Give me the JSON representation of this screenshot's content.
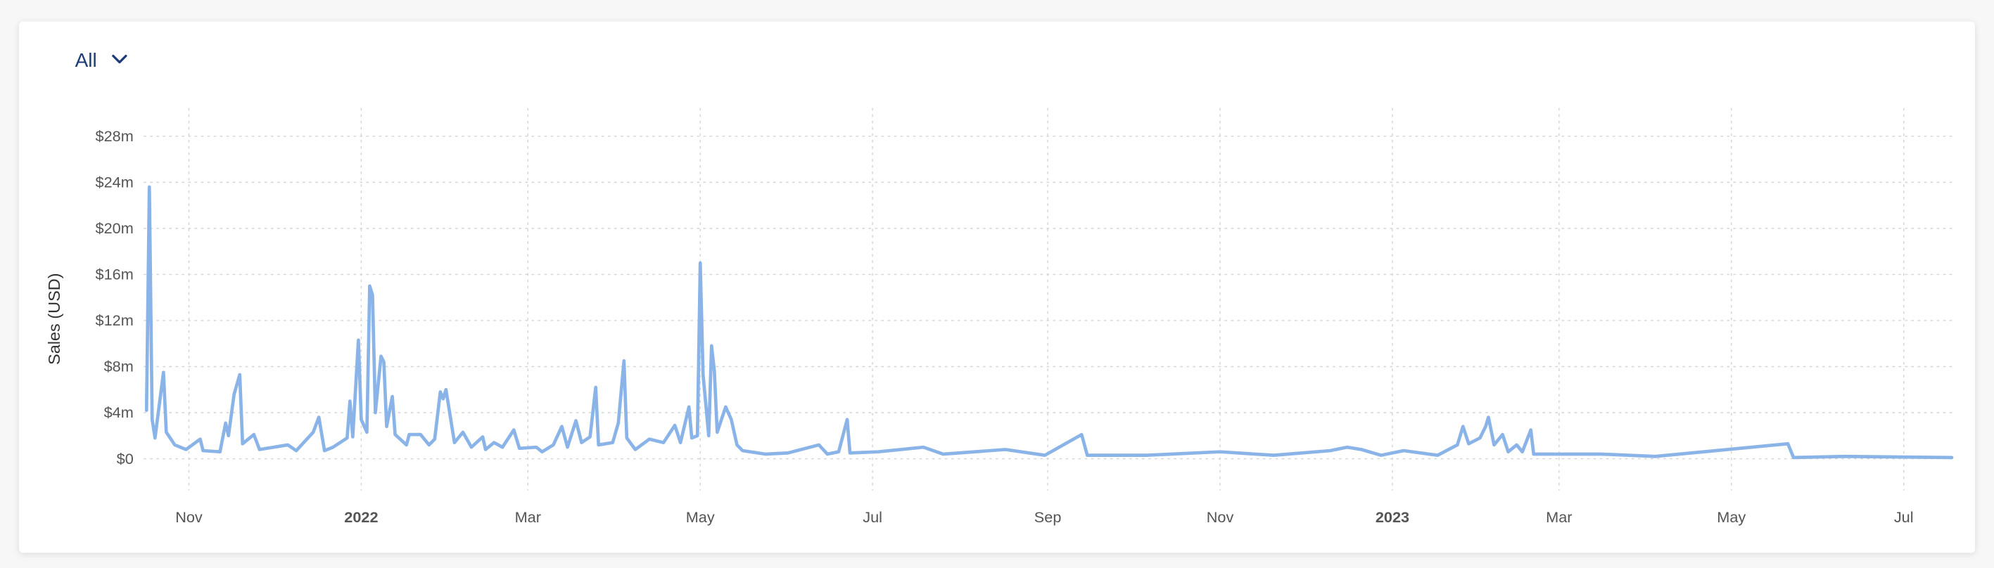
{
  "controls": {
    "filter": "All"
  },
  "chart_data": {
    "type": "line",
    "ylabel": "Sales (USD)",
    "color": "#8ab4e8",
    "grid": true,
    "xlim": [
      "2021-10-16",
      "2023-07-19"
    ],
    "ylim": [
      0,
      30
    ],
    "yticks": [
      {
        "value": 0,
        "label": "$0"
      },
      {
        "value": 4,
        "label": "$4m"
      },
      {
        "value": 8,
        "label": "$8m"
      },
      {
        "value": 12,
        "label": "$12m"
      },
      {
        "value": 16,
        "label": "$16m"
      },
      {
        "value": 20,
        "label": "$20m"
      },
      {
        "value": 24,
        "label": "$24m"
      },
      {
        "value": 28,
        "label": "$28m"
      }
    ],
    "xticks": [
      {
        "value": "2021-11",
        "label": "Nov"
      },
      {
        "value": "2022-01",
        "label": "2022"
      },
      {
        "value": "2022-03",
        "label": "Mar"
      },
      {
        "value": "2022-05",
        "label": "May"
      },
      {
        "value": "2022-07",
        "label": "Jul"
      },
      {
        "value": "2022-09",
        "label": "Sep"
      },
      {
        "value": "2022-11",
        "label": "Nov"
      },
      {
        "value": "2023-01",
        "label": "2023"
      },
      {
        "value": "2023-03",
        "label": "Mar"
      },
      {
        "value": "2023-05",
        "label": "May"
      },
      {
        "value": "2023-07",
        "label": "Jul"
      }
    ],
    "x": [
      "2021-10-17",
      "2021-10-18",
      "2021-10-19",
      "2021-10-20",
      "2021-10-23",
      "2021-10-24",
      "2021-10-27",
      "2021-10-31",
      "2021-11-05",
      "2021-11-06",
      "2021-11-12",
      "2021-11-14",
      "2021-11-15",
      "2021-11-17",
      "2021-11-19",
      "2021-11-20",
      "2021-11-24",
      "2021-11-26",
      "2021-12-06",
      "2021-12-09",
      "2021-12-15",
      "2021-12-17",
      "2021-12-19",
      "2021-12-22",
      "2021-12-27",
      "2021-12-28",
      "2021-12-29",
      "2021-12-31",
      "2022-01-01",
      "2022-01-03",
      "2022-01-04",
      "2022-01-05",
      "2022-01-06",
      "2022-01-08",
      "2022-01-09",
      "2022-01-10",
      "2022-01-12",
      "2022-01-13",
      "2022-01-17",
      "2022-01-18",
      "2022-01-22",
      "2022-01-25",
      "2022-01-27",
      "2022-01-29",
      "2022-01-30",
      "2022-01-31",
      "2022-02-03",
      "2022-02-06",
      "2022-02-09",
      "2022-02-13",
      "2022-02-14",
      "2022-02-17",
      "2022-02-20",
      "2022-02-24",
      "2022-02-26",
      "2022-03-04",
      "2022-03-06",
      "2022-03-10",
      "2022-03-13",
      "2022-03-15",
      "2022-03-18",
      "2022-03-20",
      "2022-03-23",
      "2022-03-25",
      "2022-03-26",
      "2022-03-31",
      "2022-04-02",
      "2022-04-04",
      "2022-04-05",
      "2022-04-08",
      "2022-04-13",
      "2022-04-18",
      "2022-04-22",
      "2022-04-24",
      "2022-04-27",
      "2022-04-28",
      "2022-04-30",
      "2022-05-01",
      "2022-05-02",
      "2022-05-04",
      "2022-05-05",
      "2022-05-06",
      "2022-05-07",
      "2022-05-10",
      "2022-05-12",
      "2022-05-14",
      "2022-05-16",
      "2022-05-24",
      "2022-06-01",
      "2022-06-12",
      "2022-06-15",
      "2022-06-19",
      "2022-06-22",
      "2022-06-23",
      "2022-07-03",
      "2022-07-19",
      "2022-07-26",
      "2022-08-17",
      "2022-08-31",
      "2022-09-13",
      "2022-09-15",
      "2022-10-06",
      "2022-11-01",
      "2022-11-20",
      "2022-12-10",
      "2022-12-16",
      "2022-12-21",
      "2022-12-28",
      "2023-01-05",
      "2023-01-17",
      "2023-01-24",
      "2023-01-26",
      "2023-01-28",
      "2023-02-01",
      "2023-02-03",
      "2023-02-04",
      "2023-02-06",
      "2023-02-09",
      "2023-02-11",
      "2023-02-14",
      "2023-02-16",
      "2023-02-19",
      "2023-02-20",
      "2023-03-16",
      "2023-04-04",
      "2023-05-21",
      "2023-05-23",
      "2023-06-10",
      "2023-07-18"
    ],
    "values": [
      4.2,
      23.6,
      3.4,
      1.8,
      7.5,
      2.3,
      1.2,
      0.8,
      1.7,
      0.7,
      0.6,
      3.1,
      2.0,
      5.6,
      7.3,
      1.3,
      2.1,
      0.8,
      1.2,
      0.7,
      2.3,
      3.6,
      0.7,
      1.0,
      1.8,
      5.0,
      1.9,
      10.3,
      3.4,
      2.3,
      15.0,
      14.2,
      4.0,
      8.9,
      8.4,
      2.8,
      5.4,
      2.1,
      1.2,
      2.1,
      2.1,
      1.2,
      1.7,
      5.8,
      5.2,
      6.0,
      1.4,
      2.3,
      1.0,
      1.9,
      0.8,
      1.4,
      1.0,
      2.5,
      0.9,
      1.0,
      0.6,
      1.2,
      2.8,
      1.0,
      3.3,
      1.4,
      1.9,
      6.2,
      1.2,
      1.4,
      3.1,
      8.5,
      1.8,
      0.8,
      1.7,
      1.4,
      2.9,
      1.4,
      4.5,
      1.8,
      2.0,
      17.0,
      7.3,
      2.0,
      9.8,
      7.6,
      2.3,
      4.5,
      3.4,
      1.2,
      0.7,
      0.4,
      0.5,
      1.2,
      0.4,
      0.6,
      3.4,
      0.5,
      0.6,
      1.0,
      0.4,
      0.8,
      0.3,
      2.1,
      0.3,
      0.3,
      0.6,
      0.3,
      0.7,
      1.0,
      0.8,
      0.3,
      0.7,
      0.3,
      1.2,
      2.8,
      1.3,
      1.8,
      2.8,
      3.6,
      1.2,
      2.1,
      0.6,
      1.2,
      0.6,
      2.5,
      0.4,
      0.4,
      0.2,
      1.3,
      0.1,
      0.2,
      0.1
    ]
  }
}
